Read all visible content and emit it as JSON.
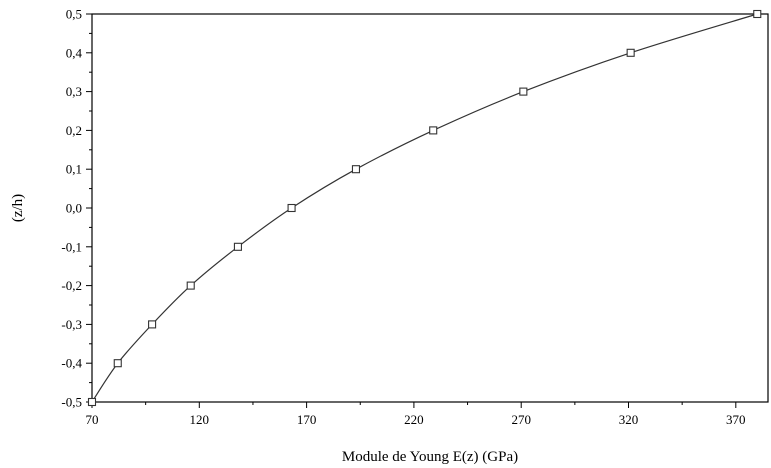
{
  "chart_data": {
    "type": "line",
    "title": "",
    "xlabel": "Module de Young E(z) (GPa)",
    "ylabel": "(z/h)",
    "xlim": [
      70,
      385
    ],
    "ylim": [
      -0.5,
      0.5
    ],
    "x_ticks": [
      70,
      120,
      170,
      220,
      270,
      320,
      370
    ],
    "x_tick_labels": [
      "70",
      "120",
      "170",
      "220",
      "270",
      "320",
      "370"
    ],
    "y_ticks": [
      -0.5,
      -0.4,
      -0.3,
      -0.2,
      -0.1,
      0.0,
      0.1,
      0.2,
      0.3,
      0.4,
      0.5
    ],
    "y_tick_labels": [
      "-0,5",
      "-0,4",
      "-0,3",
      "-0,2",
      "-0,1",
      "0,0",
      "0,1",
      "0,2",
      "0,3",
      "0,4",
      "0,5"
    ],
    "grid": false,
    "legend": "none",
    "series": [
      {
        "type": "scatter",
        "marker": "open-square",
        "x": [
          70,
          82,
          98,
          116,
          138,
          163,
          193,
          229,
          271,
          321,
          380
        ],
        "y": [
          -0.5,
          -0.4,
          -0.3,
          -0.2,
          -0.1,
          0.0,
          0.1,
          0.2,
          0.3,
          0.4,
          0.5
        ]
      },
      {
        "type": "line",
        "style": "solid",
        "x": [
          70,
          82,
          98,
          116,
          138,
          163,
          193,
          229,
          271,
          321,
          380
        ],
        "y": [
          -0.5,
          -0.4,
          -0.3,
          -0.2,
          -0.1,
          0.0,
          0.1,
          0.2,
          0.3,
          0.4,
          0.5
        ]
      }
    ],
    "colors": {
      "line": "#333333",
      "marker": "#333333",
      "axis": "#000000"
    }
  }
}
